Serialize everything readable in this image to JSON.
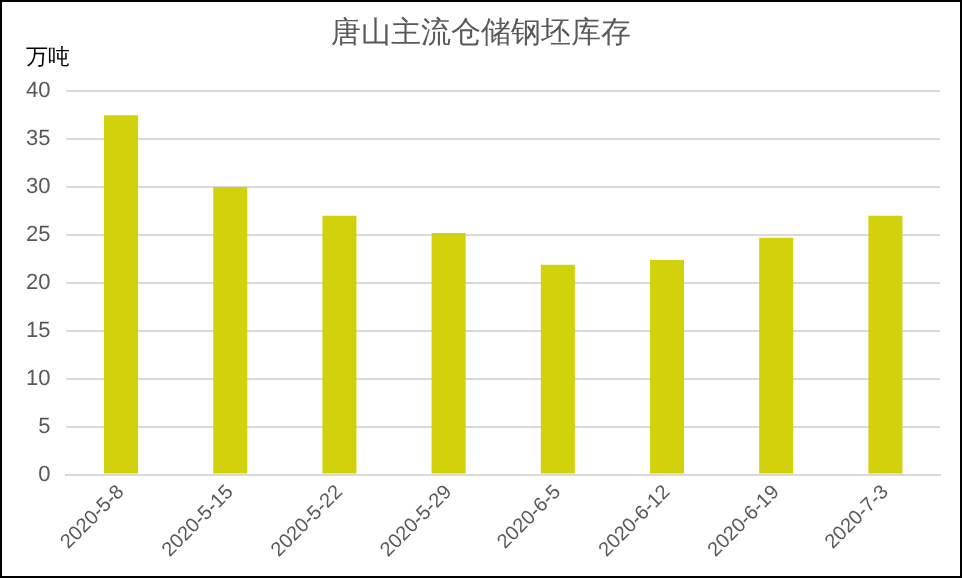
{
  "chart_data": {
    "type": "bar",
    "title": "唐山主流仓储钢坯库存",
    "ylabel": "万吨",
    "categories": [
      "2020-5-8",
      "2020-5-15",
      "2020-5-22",
      "2020-5-29",
      "2020-6-5",
      "2020-6-12",
      "2020-6-19",
      "2020-7-3"
    ],
    "values": [
      37.5,
      30,
      27,
      25.2,
      21.9,
      22.4,
      24.7,
      27
    ],
    "color": "#d2d20c",
    "ylim": [
      0,
      40
    ],
    "yticks": [
      0,
      5,
      10,
      15,
      20,
      25,
      30,
      35,
      40
    ],
    "grid": "y",
    "legend": false
  }
}
